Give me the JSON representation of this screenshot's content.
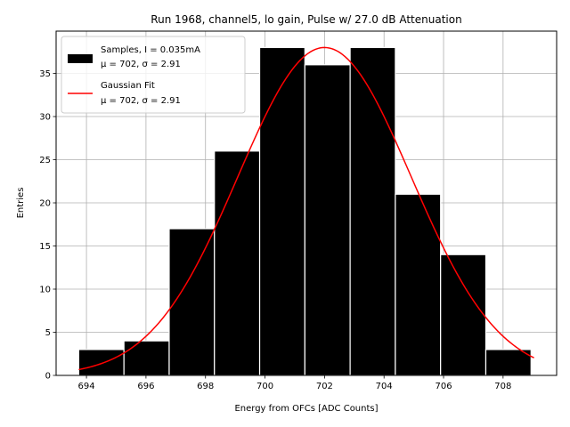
{
  "chart_data": {
    "type": "bar",
    "title": "Run 1968, channel5, lo gain, Pulse w/ 27.0 dB Attenuation",
    "xlabel": "Energy from OFCs [ADC Counts]",
    "ylabel": "Entries",
    "xlim": [
      692.98,
      709.8
    ],
    "ylim": [
      0,
      39.9
    ],
    "xticks": [
      694,
      696,
      698,
      700,
      702,
      704,
      706,
      708
    ],
    "yticks": [
      0,
      5,
      10,
      15,
      20,
      25,
      30,
      35
    ],
    "grid": true,
    "bins": [
      {
        "x0": 693.74,
        "x1": 695.26,
        "count": 3
      },
      {
        "x0": 695.26,
        "x1": 696.78,
        "count": 4
      },
      {
        "x0": 696.78,
        "x1": 698.3,
        "count": 17
      },
      {
        "x0": 698.3,
        "x1": 699.82,
        "count": 26
      },
      {
        "x0": 699.82,
        "x1": 701.34,
        "count": 38
      },
      {
        "x0": 701.34,
        "x1": 702.86,
        "count": 36
      },
      {
        "x0": 702.86,
        "x1": 704.38,
        "count": 38
      },
      {
        "x0": 704.38,
        "x1": 705.9,
        "count": 21
      },
      {
        "x0": 705.9,
        "x1": 707.42,
        "count": 14
      },
      {
        "x0": 707.42,
        "x1": 708.94,
        "count": 3
      }
    ],
    "fit": {
      "name": "Gaussian Fit",
      "amplitude": 38.0,
      "mean": 702.0,
      "sigma": 2.91,
      "range": [
        693.74,
        709.04
      ],
      "color": "#ff0000"
    },
    "bar_color": "#000000",
    "bar_edge_color": "#ffffff",
    "legend": {
      "position": "top-left",
      "entries": [
        {
          "line1": "Samples, I = 0.035mA",
          "line2": "μ = 702, σ = 2.91",
          "kind": "patch",
          "color": "#000000"
        },
        {
          "line1": "Gaussian Fit",
          "line2": "μ = 702, σ = 2.91",
          "kind": "line",
          "color": "#ff0000"
        }
      ]
    }
  }
}
